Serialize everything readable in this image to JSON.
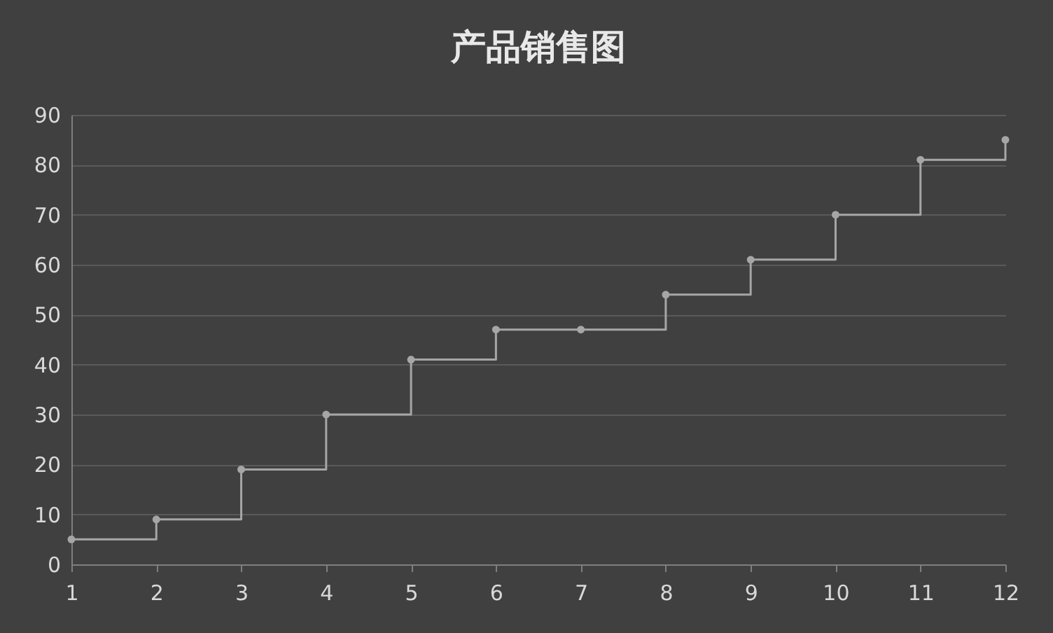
{
  "chart_data": {
    "type": "step",
    "title": "产品销售图",
    "x": [
      1,
      2,
      3,
      4,
      5,
      6,
      7,
      8,
      9,
      10,
      11,
      12
    ],
    "series": [
      {
        "color": "#a6a6a6",
        "values": [
          5,
          9,
          19,
          30,
          41,
          47,
          47,
          54,
          61,
          70,
          81,
          85
        ]
      }
    ],
    "xlim": [
      1,
      12
    ],
    "xticks": [
      1,
      2,
      3,
      4,
      5,
      6,
      7,
      8,
      9,
      10,
      11,
      12
    ],
    "ylim": [
      0,
      90
    ],
    "yticks": [
      0,
      10,
      20,
      30,
      40,
      50,
      60,
      70,
      80,
      90
    ],
    "grid": "y",
    "marker": "circle",
    "line_style": "solid"
  }
}
